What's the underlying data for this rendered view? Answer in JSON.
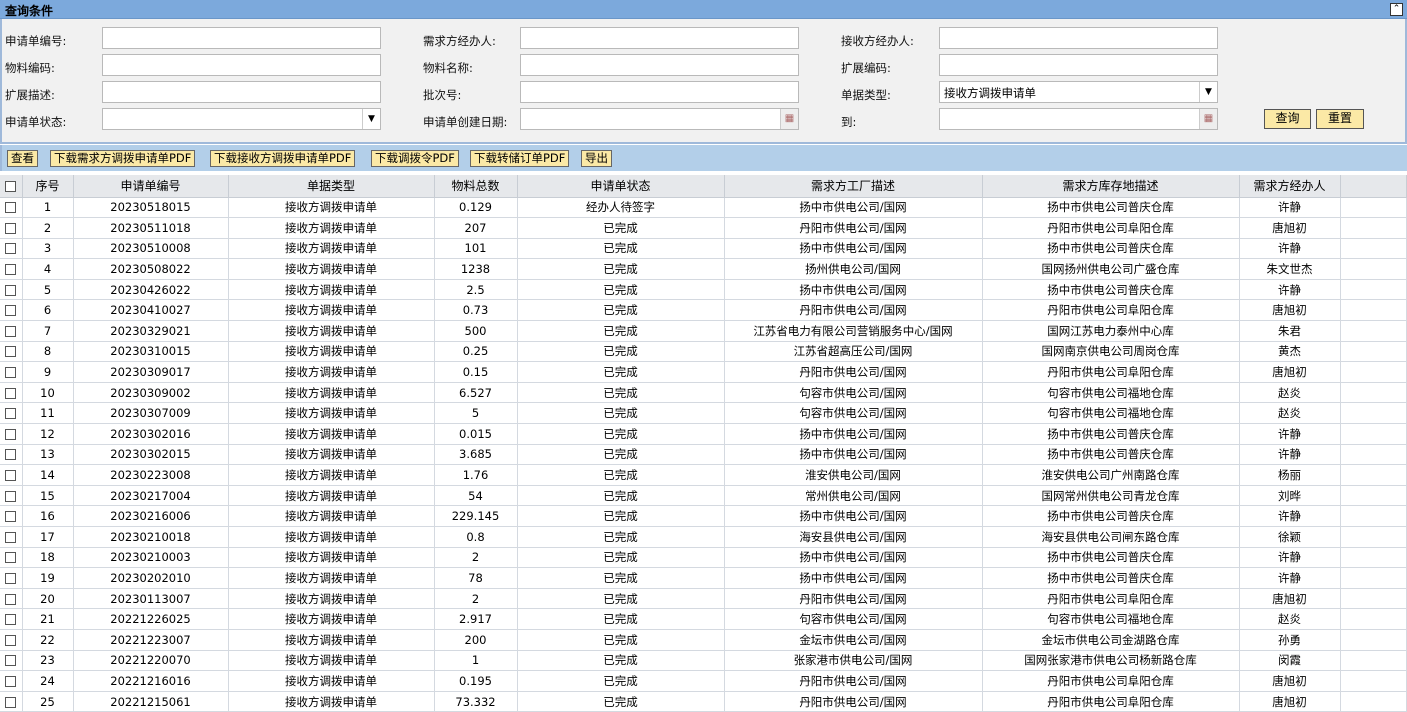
{
  "panel": {
    "title": "查询条件",
    "collapse_icon": "double-chevron-up-icon"
  },
  "form": {
    "request_no": {
      "label": "申请单编号:",
      "value": ""
    },
    "demand_handler": {
      "label": "需求方经办人:",
      "value": ""
    },
    "receive_handler": {
      "label": "接收方经办人:",
      "value": ""
    },
    "material_code": {
      "label": "物料编码:",
      "value": ""
    },
    "material_name": {
      "label": "物料名称:",
      "value": ""
    },
    "ext_code": {
      "label": "扩展编码:",
      "value": ""
    },
    "ext_desc": {
      "label": "扩展描述:",
      "value": ""
    },
    "batch_no": {
      "label": "批次号:",
      "value": ""
    },
    "doc_type": {
      "label": "单据类型:",
      "value": "接收方调拨申请单"
    },
    "status": {
      "label": "申请单状态:",
      "value": ""
    },
    "create_date": {
      "label": "申请单创建日期:",
      "value": ""
    },
    "to_date": {
      "label": "到:",
      "value": ""
    },
    "query_label": "查询",
    "reset_label": "重置"
  },
  "toolbar": [
    "查看",
    "下载需求方调拨申请单PDF",
    "下载接收方调拨申请单PDF",
    "下载调拨令PDF",
    "下载转储订单PDF",
    "导出"
  ],
  "table": {
    "headers": [
      "序号",
      "申请单编号",
      "单据类型",
      "物料总数",
      "申请单状态",
      "需求方工厂描述",
      "需求方库存地描述",
      "需求方经办人"
    ],
    "rows": [
      [
        "1",
        "20230518015",
        "接收方调拨申请单",
        "0.129",
        "经办人待签字",
        "扬中市供电公司/国网",
        "扬中市供电公司普庆仓库",
        "许静"
      ],
      [
        "2",
        "20230511018",
        "接收方调拨申请单",
        "207",
        "已完成",
        "丹阳市供电公司/国网",
        "丹阳市供电公司阜阳仓库",
        "唐旭初"
      ],
      [
        "3",
        "20230510008",
        "接收方调拨申请单",
        "101",
        "已完成",
        "扬中市供电公司/国网",
        "扬中市供电公司普庆仓库",
        "许静"
      ],
      [
        "4",
        "20230508022",
        "接收方调拨申请单",
        "1238",
        "已完成",
        "扬州供电公司/国网",
        "国网扬州供电公司广盛仓库",
        "朱文世杰"
      ],
      [
        "5",
        "20230426022",
        "接收方调拨申请单",
        "2.5",
        "已完成",
        "扬中市供电公司/国网",
        "扬中市供电公司普庆仓库",
        "许静"
      ],
      [
        "6",
        "20230410027",
        "接收方调拨申请单",
        "0.73",
        "已完成",
        "丹阳市供电公司/国网",
        "丹阳市供电公司阜阳仓库",
        "唐旭初"
      ],
      [
        "7",
        "20230329021",
        "接收方调拨申请单",
        "500",
        "已完成",
        "江苏省电力有限公司营销服务中心/国网",
        "国网江苏电力泰州中心库",
        "朱君"
      ],
      [
        "8",
        "20230310015",
        "接收方调拨申请单",
        "0.25",
        "已完成",
        "江苏省超高压公司/国网",
        "国网南京供电公司周岗仓库",
        "黄杰"
      ],
      [
        "9",
        "20230309017",
        "接收方调拨申请单",
        "0.15",
        "已完成",
        "丹阳市供电公司/国网",
        "丹阳市供电公司阜阳仓库",
        "唐旭初"
      ],
      [
        "10",
        "20230309002",
        "接收方调拨申请单",
        "6.527",
        "已完成",
        "句容市供电公司/国网",
        "句容市供电公司福地仓库",
        "赵炎"
      ],
      [
        "11",
        "20230307009",
        "接收方调拨申请单",
        "5",
        "已完成",
        "句容市供电公司/国网",
        "句容市供电公司福地仓库",
        "赵炎"
      ],
      [
        "12",
        "20230302016",
        "接收方调拨申请单",
        "0.015",
        "已完成",
        "扬中市供电公司/国网",
        "扬中市供电公司普庆仓库",
        "许静"
      ],
      [
        "13",
        "20230302015",
        "接收方调拨申请单",
        "3.685",
        "已完成",
        "扬中市供电公司/国网",
        "扬中市供电公司普庆仓库",
        "许静"
      ],
      [
        "14",
        "20230223008",
        "接收方调拨申请单",
        "1.76",
        "已完成",
        "淮安供电公司/国网",
        "淮安供电公司广州南路仓库",
        "杨丽"
      ],
      [
        "15",
        "20230217004",
        "接收方调拨申请单",
        "54",
        "已完成",
        "常州供电公司/国网",
        "国网常州供电公司青龙仓库",
        "刘晔"
      ],
      [
        "16",
        "20230216006",
        "接收方调拨申请单",
        "229.145",
        "已完成",
        "扬中市供电公司/国网",
        "扬中市供电公司普庆仓库",
        "许静"
      ],
      [
        "17",
        "20230210018",
        "接收方调拨申请单",
        "0.8",
        "已完成",
        "海安县供电公司/国网",
        "海安县供电公司闸东路仓库",
        "徐颖"
      ],
      [
        "18",
        "20230210003",
        "接收方调拨申请单",
        "2",
        "已完成",
        "扬中市供电公司/国网",
        "扬中市供电公司普庆仓库",
        "许静"
      ],
      [
        "19",
        "20230202010",
        "接收方调拨申请单",
        "78",
        "已完成",
        "扬中市供电公司/国网",
        "扬中市供电公司普庆仓库",
        "许静"
      ],
      [
        "20",
        "20230113007",
        "接收方调拨申请单",
        "2",
        "已完成",
        "丹阳市供电公司/国网",
        "丹阳市供电公司阜阳仓库",
        "唐旭初"
      ],
      [
        "21",
        "20221226025",
        "接收方调拨申请单",
        "2.917",
        "已完成",
        "句容市供电公司/国网",
        "句容市供电公司福地仓库",
        "赵炎"
      ],
      [
        "22",
        "20221223007",
        "接收方调拨申请单",
        "200",
        "已完成",
        "金坛市供电公司/国网",
        "金坛市供电公司金湖路仓库",
        "孙勇"
      ],
      [
        "23",
        "20221220070",
        "接收方调拨申请单",
        "1",
        "已完成",
        "张家港市供电公司/国网",
        "国网张家港市供电公司杨新路仓库",
        "闵霞"
      ],
      [
        "24",
        "20221216016",
        "接收方调拨申请单",
        "0.195",
        "已完成",
        "丹阳市供电公司/国网",
        "丹阳市供电公司阜阳仓库",
        "唐旭初"
      ],
      [
        "25",
        "20221215061",
        "接收方调拨申请单",
        "73.332",
        "已完成",
        "丹阳市供电公司/国网",
        "丹阳市供电公司阜阳仓库",
        "唐旭初"
      ]
    ]
  }
}
